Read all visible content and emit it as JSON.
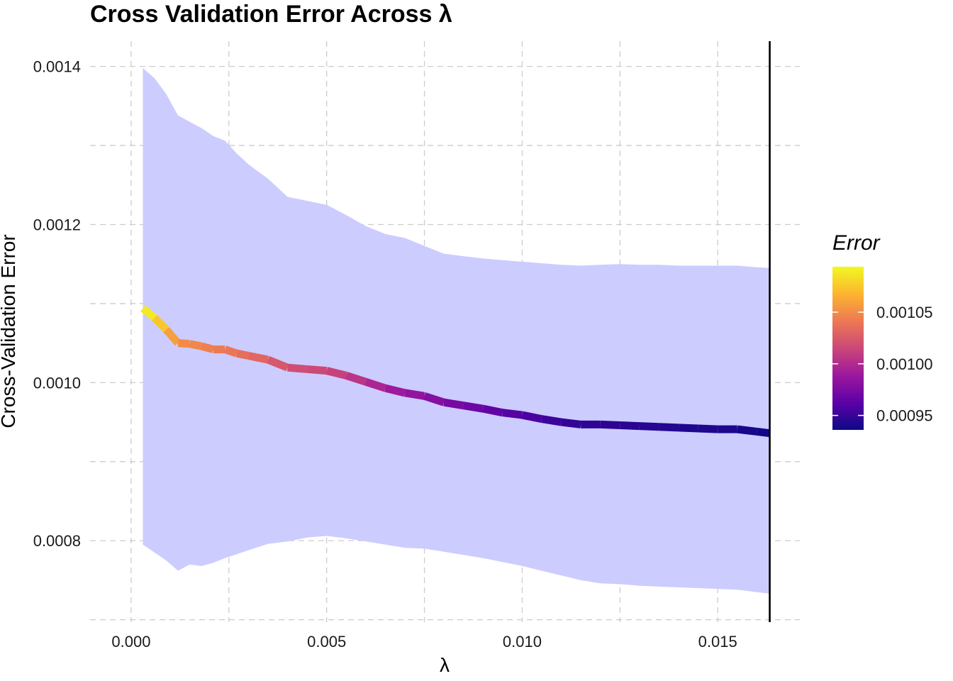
{
  "title": "Cross Validation Error Across λ",
  "chart_data": {
    "type": "line",
    "title": "Cross Validation Error Across λ",
    "xlabel": "λ",
    "ylabel": "Cross-Validation Error",
    "xlim": [
      -0.00105,
      0.0171
    ],
    "ylim": [
      0.000697,
      0.001432
    ],
    "x_ticks": [
      0.0,
      0.005,
      0.01,
      0.015
    ],
    "x_tick_labels": [
      "0.000",
      "0.005",
      "0.010",
      "0.015"
    ],
    "y_ticks": [
      0.0008,
      0.001,
      0.0012,
      0.0014
    ],
    "y_tick_labels": [
      "0.0008",
      "0.0010",
      "0.0012",
      "0.0014"
    ],
    "grid": true,
    "band_color": "#ccccff",
    "vline_x": 0.01633,
    "series": [
      {
        "x": [
          0.0003,
          0.0006,
          0.0009,
          0.0012,
          0.0015,
          0.0018,
          0.0021,
          0.0024,
          0.0027,
          0.003,
          0.0035,
          0.004,
          0.0045,
          0.005,
          0.0055,
          0.006,
          0.0065,
          0.007,
          0.0075,
          0.008,
          0.0085,
          0.009,
          0.0095,
          0.01,
          0.0105,
          0.011,
          0.0115,
          0.012,
          0.0125,
          0.013,
          0.0135,
          0.014,
          0.0145,
          0.015,
          0.0155,
          0.016,
          0.01633
        ],
        "y": [
          0.001094,
          0.001082,
          0.001067,
          0.00105,
          0.001049,
          0.001046,
          0.001042,
          0.001042,
          0.001037,
          0.001034,
          0.001029,
          0.001019,
          0.001017,
          0.001015,
          0.001009,
          0.001001,
          0.000993,
          0.000987,
          0.000983,
          0.000975,
          0.000971,
          0.000967,
          0.000962,
          0.000959,
          0.000954,
          0.00095,
          0.000947,
          0.000947,
          0.000946,
          0.000945,
          0.000944,
          0.000943,
          0.000942,
          0.000941,
          0.000941,
          0.000938,
          0.000936
        ],
        "lower": [
          0.000795,
          0.000785,
          0.000775,
          0.000762,
          0.00077,
          0.000768,
          0.000772,
          0.000778,
          0.000783,
          0.000788,
          0.000796,
          0.000799,
          0.000804,
          0.000806,
          0.000803,
          0.000799,
          0.000795,
          0.000791,
          0.00079,
          0.000786,
          0.000782,
          0.000778,
          0.000773,
          0.000768,
          0.000762,
          0.000756,
          0.00075,
          0.000746,
          0.000745,
          0.000743,
          0.000742,
          0.000741,
          0.00074,
          0.000739,
          0.000738,
          0.000735,
          0.000733
        ],
        "upper": [
          0.001398,
          0.001385,
          0.001365,
          0.001338,
          0.00133,
          0.001322,
          0.001312,
          0.001306,
          0.00129,
          0.001276,
          0.001258,
          0.001235,
          0.00123,
          0.001225,
          0.001212,
          0.001198,
          0.001188,
          0.001183,
          0.001173,
          0.001163,
          0.00116,
          0.001157,
          0.001155,
          0.001153,
          0.001151,
          0.001149,
          0.001148,
          0.001149,
          0.00115,
          0.001149,
          0.001149,
          0.001148,
          0.001148,
          0.001148,
          0.001148,
          0.001146,
          0.001145
        ]
      }
    ],
    "legend": {
      "title": "Error",
      "type": "colorbar",
      "position": "right",
      "range": [
        0.000936,
        0.001094
      ],
      "ticks": [
        0.00095,
        0.001,
        0.00105
      ],
      "tick_labels": [
        "0.00095",
        "0.00100",
        "0.00105"
      ],
      "colormap": [
        "#0d0887",
        "#5c01a6",
        "#9c179e",
        "#cc4778",
        "#ed7953",
        "#fdb42f",
        "#f0f921"
      ]
    }
  }
}
